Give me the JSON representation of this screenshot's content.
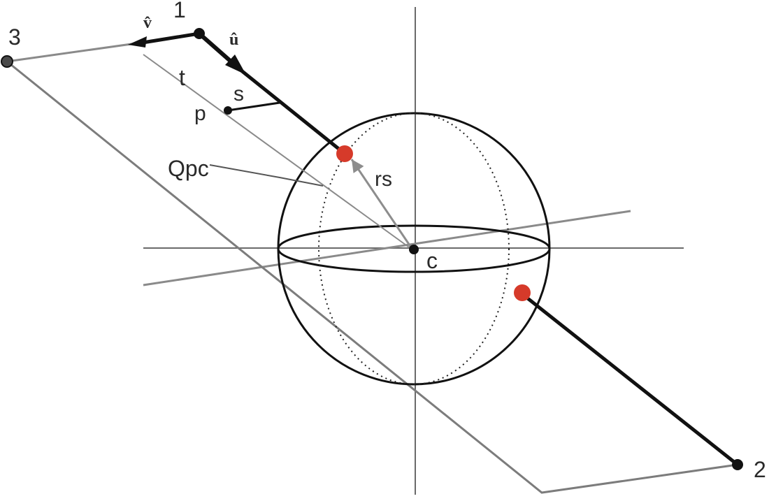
{
  "diagram": {
    "labels": {
      "point_1": "1",
      "point_2": "2",
      "point_3": "3",
      "v_hat": "v̂",
      "u_hat": "û",
      "t": "t",
      "s": "s",
      "p": "p",
      "qpc": "Qpc",
      "rs": "rs",
      "c": "c"
    },
    "colors": {
      "background": "#ffffff",
      "ink": "#111111",
      "axis": "#6a6a6a",
      "plane": "#7c7c7c",
      "thin_line": "#8a8a8a",
      "radius_arrow": "#8d8d8d",
      "intersection": "#d63a2a"
    }
  }
}
